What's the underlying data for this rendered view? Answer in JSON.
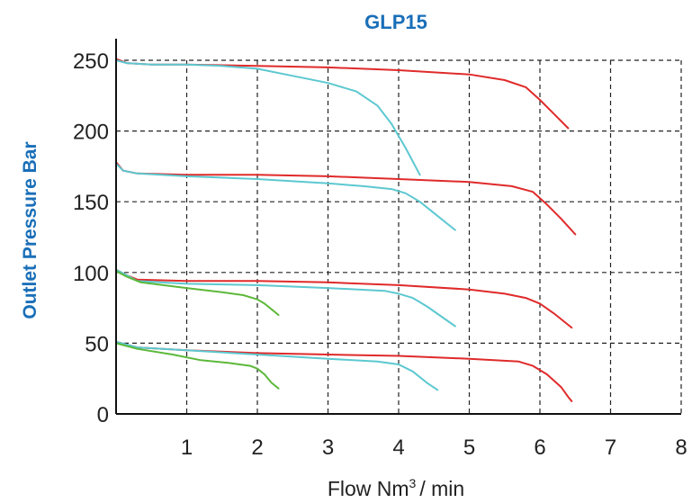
{
  "chart_data": {
    "type": "line",
    "title": "GLP15",
    "ylabel": "Outlet Pressure Bar",
    "xlabel_main": "Flow Nm",
    "xlabel_sup": "3",
    "xlabel_tail": "/ min",
    "xlim": [
      0,
      8
    ],
    "ylim": [
      0,
      250
    ],
    "x_ticks": [
      "1",
      "2",
      "3",
      "4",
      "5",
      "6",
      "7",
      "8"
    ],
    "x_tick_values": [
      1,
      2,
      3,
      4,
      5,
      6,
      7,
      8
    ],
    "y_ticks": [
      "0",
      "50",
      "100",
      "150",
      "200",
      "250"
    ],
    "y_tick_values": [
      0,
      50,
      100,
      150,
      200,
      250
    ],
    "grid": true,
    "colors": {
      "red": "#e02a2a",
      "cyan": "#5cc8d0",
      "green": "#5cb83a",
      "title": "#1a6fb8"
    },
    "series": [
      {
        "color": "#e02a2a",
        "points": [
          [
            0,
            251
          ],
          [
            0.15,
            248
          ],
          [
            0.5,
            247
          ],
          [
            1,
            247
          ],
          [
            2,
            246
          ],
          [
            3,
            245
          ],
          [
            4,
            243
          ],
          [
            5,
            240
          ],
          [
            5.5,
            236
          ],
          [
            5.8,
            231
          ],
          [
            6.0,
            222
          ],
          [
            6.2,
            212
          ],
          [
            6.4,
            202
          ]
        ]
      },
      {
        "color": "#5cc8d0",
        "points": [
          [
            0,
            250
          ],
          [
            0.15,
            248
          ],
          [
            0.5,
            247
          ],
          [
            1,
            247
          ],
          [
            1.5,
            246
          ],
          [
            2,
            244
          ],
          [
            2.5,
            239
          ],
          [
            3,
            234
          ],
          [
            3.4,
            228
          ],
          [
            3.7,
            218
          ],
          [
            3.9,
            205
          ],
          [
            4.1,
            188
          ],
          [
            4.3,
            169
          ]
        ]
      },
      {
        "color": "#e02a2a",
        "points": [
          [
            0,
            178
          ],
          [
            0.1,
            172
          ],
          [
            0.3,
            170
          ],
          [
            1,
            169
          ],
          [
            2,
            169
          ],
          [
            3,
            168
          ],
          [
            4,
            166
          ],
          [
            5,
            164
          ],
          [
            5.6,
            161
          ],
          [
            5.9,
            157
          ],
          [
            6.1,
            148
          ],
          [
            6.3,
            138
          ],
          [
            6.5,
            127
          ]
        ]
      },
      {
        "color": "#5cc8d0",
        "points": [
          [
            0,
            177
          ],
          [
            0.1,
            172
          ],
          [
            0.3,
            170
          ],
          [
            1,
            168
          ],
          [
            2,
            166
          ],
          [
            3,
            163
          ],
          [
            3.5,
            161
          ],
          [
            3.9,
            159
          ],
          [
            4.1,
            156
          ],
          [
            4.3,
            150
          ],
          [
            4.5,
            142
          ],
          [
            4.8,
            130
          ]
        ]
      },
      {
        "color": "#e02a2a",
        "points": [
          [
            0,
            102
          ],
          [
            0.15,
            98
          ],
          [
            0.3,
            95
          ],
          [
            1,
            94
          ],
          [
            2,
            94
          ],
          [
            3,
            93
          ],
          [
            4,
            91
          ],
          [
            5,
            88
          ],
          [
            5.5,
            85
          ],
          [
            5.8,
            82
          ],
          [
            6.0,
            78
          ],
          [
            6.2,
            71
          ],
          [
            6.4,
            63
          ],
          [
            6.45,
            61
          ]
        ]
      },
      {
        "color": "#5cc8d0",
        "points": [
          [
            0,
            102
          ],
          [
            0.15,
            98
          ],
          [
            0.3,
            94
          ],
          [
            1,
            92
          ],
          [
            2,
            91
          ],
          [
            3,
            89
          ],
          [
            3.8,
            87
          ],
          [
            4.0,
            85
          ],
          [
            4.2,
            82
          ],
          [
            4.4,
            76
          ],
          [
            4.6,
            69
          ],
          [
            4.8,
            62
          ]
        ]
      },
      {
        "color": "#5cb83a",
        "points": [
          [
            0,
            101
          ],
          [
            0.15,
            97
          ],
          [
            0.35,
            93
          ],
          [
            1,
            89
          ],
          [
            1.5,
            86
          ],
          [
            1.8,
            84
          ],
          [
            2.0,
            81
          ],
          [
            2.1,
            78
          ],
          [
            2.2,
            74
          ],
          [
            2.3,
            70
          ]
        ]
      },
      {
        "color": "#e02a2a",
        "points": [
          [
            0,
            51
          ],
          [
            0.3,
            47
          ],
          [
            1,
            45
          ],
          [
            2,
            43
          ],
          [
            3,
            42
          ],
          [
            4,
            41
          ],
          [
            5,
            39
          ],
          [
            5.7,
            37
          ],
          [
            5.9,
            34
          ],
          [
            6.1,
            28
          ],
          [
            6.3,
            19
          ],
          [
            6.4,
            12
          ],
          [
            6.45,
            9
          ]
        ]
      },
      {
        "color": "#5cc8d0",
        "points": [
          [
            0,
            51
          ],
          [
            0.3,
            47
          ],
          [
            1,
            45
          ],
          [
            2,
            42
          ],
          [
            3,
            39
          ],
          [
            3.7,
            37
          ],
          [
            4.0,
            35
          ],
          [
            4.2,
            30
          ],
          [
            4.4,
            22
          ],
          [
            4.55,
            17
          ]
        ]
      },
      {
        "color": "#5cb83a",
        "points": [
          [
            0,
            50
          ],
          [
            0.3,
            46
          ],
          [
            0.8,
            42
          ],
          [
            1.2,
            38
          ],
          [
            1.6,
            36
          ],
          [
            1.9,
            34
          ],
          [
            2.0,
            32
          ],
          [
            2.1,
            28
          ],
          [
            2.2,
            22
          ],
          [
            2.3,
            18
          ]
        ]
      }
    ]
  }
}
